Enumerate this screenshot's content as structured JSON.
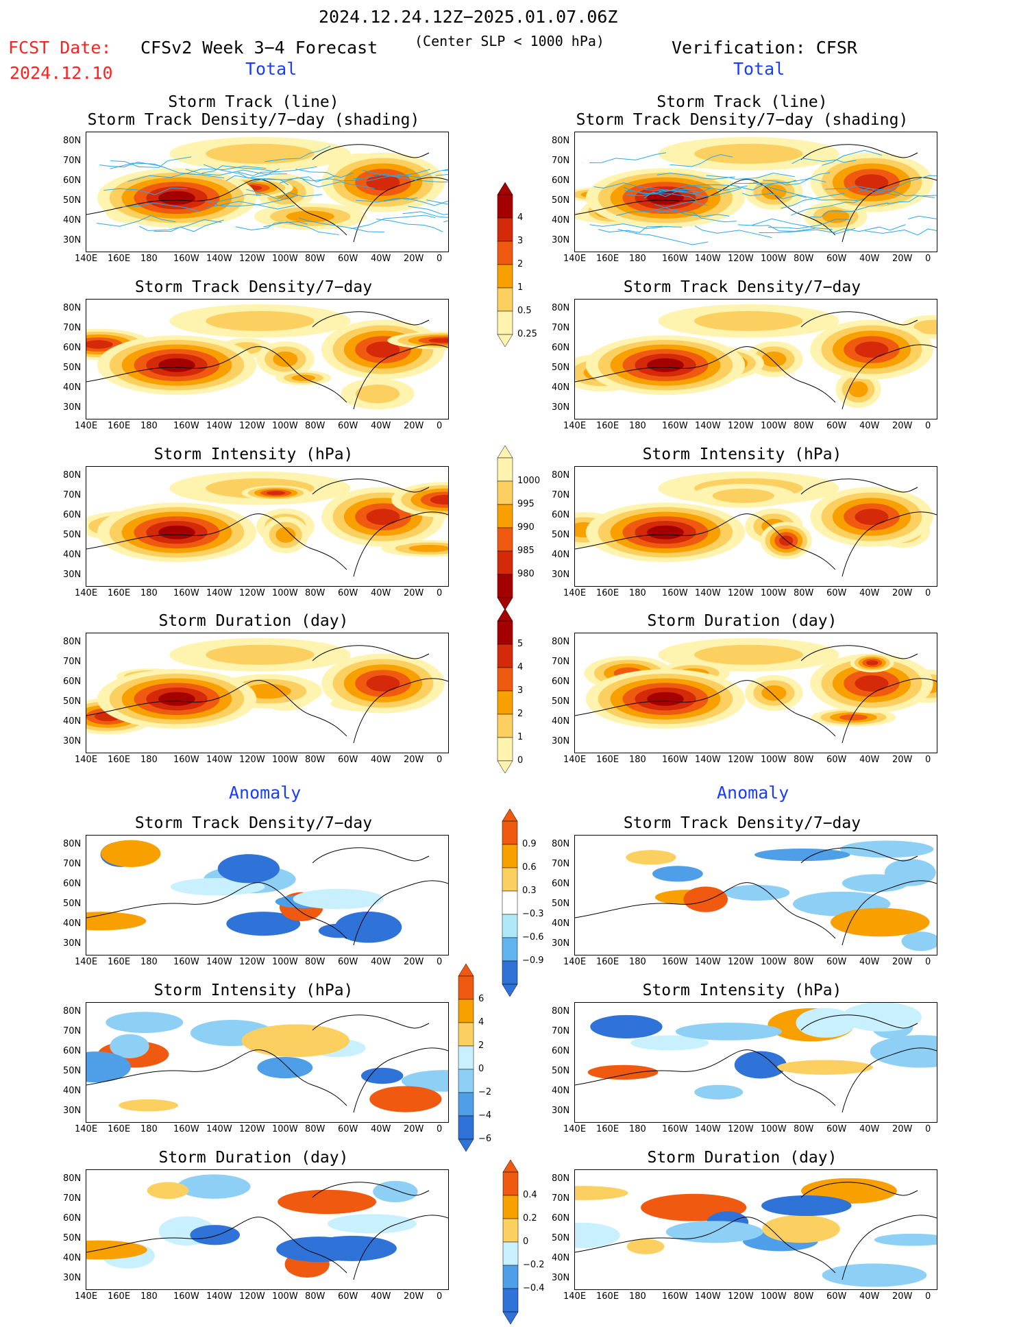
{
  "header": {
    "period": "2024.12.24.12Z−2025.01.07.06Z",
    "fcst_label": "FCST Date:",
    "fcst_date": "2024.12.10",
    "model": "CFSv2 Week 3−4 Forecast",
    "criterion": "(Center SLP < 1000 hPa)",
    "verification": "Verification: CFSR",
    "total_left": "Total",
    "total_right": "Total",
    "anomaly_left": "Anomaly",
    "anomaly_right": "Anomaly"
  },
  "axes": {
    "lat_labels": [
      "80N",
      "70N",
      "60N",
      "50N",
      "40N",
      "30N"
    ],
    "lon_labels": [
      "140E",
      "160E",
      "180",
      "160W",
      "140W",
      "120W",
      "100W",
      "80W",
      "60W",
      "40W",
      "20W",
      "0"
    ]
  },
  "panels": [
    {
      "col": "left",
      "row": 0,
      "title1": "Storm Track (line)",
      "title2": "Storm Track Density/7−day (shading)",
      "field": "density",
      "scheme": "total",
      "tracks": true
    },
    {
      "col": "right",
      "row": 0,
      "title1": "Storm Track (line)",
      "title2": "Storm Track Density/7−day (shading)",
      "field": "density",
      "scheme": "total",
      "tracks": true
    },
    {
      "col": "left",
      "row": 1,
      "title1": "Storm Track Density/7−day",
      "title2": "",
      "field": "density",
      "scheme": "total"
    },
    {
      "col": "right",
      "row": 1,
      "title1": "Storm Track Density/7−day",
      "title2": "",
      "field": "density",
      "scheme": "total"
    },
    {
      "col": "left",
      "row": 2,
      "title1": "Storm Intensity (hPa)",
      "title2": "",
      "field": "intensity",
      "scheme": "total"
    },
    {
      "col": "right",
      "row": 2,
      "title1": "Storm Intensity (hPa)",
      "title2": "",
      "field": "intensity",
      "scheme": "total"
    },
    {
      "col": "left",
      "row": 3,
      "title1": "Storm Duration (day)",
      "title2": "",
      "field": "duration",
      "scheme": "total"
    },
    {
      "col": "right",
      "row": 3,
      "title1": "Storm Duration (day)",
      "title2": "",
      "field": "duration",
      "scheme": "total"
    },
    {
      "col": "left",
      "row": 4,
      "title1": "Storm Track Density/7−day",
      "title2": "",
      "field": "density_anom",
      "scheme": "anom"
    },
    {
      "col": "right",
      "row": 4,
      "title1": "Storm Track Density/7−day",
      "title2": "",
      "field": "density_anom",
      "scheme": "anom"
    },
    {
      "col": "left",
      "row": 5,
      "title1": "Storm Intensity (hPa)",
      "title2": "",
      "field": "intensity_anom",
      "scheme": "anom"
    },
    {
      "col": "right",
      "row": 5,
      "title1": "Storm Intensity (hPa)",
      "title2": "",
      "field": "intensity_anom",
      "scheme": "anom"
    },
    {
      "col": "left",
      "row": 6,
      "title1": "Storm Duration (day)",
      "title2": "",
      "field": "duration_anom",
      "scheme": "anom"
    },
    {
      "col": "right",
      "row": 6,
      "title1": "Storm Duration (day)",
      "title2": "",
      "field": "duration_anom",
      "scheme": "anom"
    }
  ],
  "colorbars": [
    {
      "name": "density",
      "labels": [
        "4",
        "3",
        "2",
        "1",
        "0.5",
        "0.25"
      ],
      "colors": [
        "#a50000",
        "#d42a0a",
        "#f05a10",
        "#f7a000",
        "#fcd060",
        "#fff3b0"
      ]
    },
    {
      "name": "intensity",
      "labels": [
        "1000",
        "995",
        "990",
        "985",
        "980"
      ],
      "colors": [
        "#fff3b0",
        "#fcd060",
        "#f7a000",
        "#f05a10",
        "#d42a0a",
        "#a50000"
      ]
    },
    {
      "name": "duration",
      "labels": [
        "5",
        "4",
        "3",
        "2",
        "1",
        "0"
      ],
      "colors": [
        "#a50000",
        "#d42a0a",
        "#f05a10",
        "#f7a000",
        "#fcd060",
        "#fff3b0"
      ]
    },
    {
      "name": "density_anom",
      "labels": [
        "0.9",
        "0.6",
        "0.3",
        "−0.3",
        "−0.6",
        "−0.9"
      ],
      "colors": [
        "#f05a10",
        "#f7a000",
        "#fcd060",
        "#ffffff",
        "#b0e8f8",
        "#60b4f0",
        "#2f73d8"
      ]
    },
    {
      "name": "intensity_anom",
      "labels": [
        "6",
        "4",
        "2",
        "0",
        "−2",
        "−4",
        "−6"
      ],
      "colors": [
        "#f05a10",
        "#f7a000",
        "#fcd060",
        "#c8f0ff",
        "#8ed0f5",
        "#4f9ee8",
        "#2f73d8"
      ]
    },
    {
      "name": "duration_anom",
      "labels": [
        "0.4",
        "0.2",
        "0",
        "−0.2",
        "−0.4"
      ],
      "colors": [
        "#f05a10",
        "#f7a000",
        "#fcd060",
        "#c8f0ff",
        "#4f9ee8",
        "#2f73d8"
      ]
    }
  ]
}
